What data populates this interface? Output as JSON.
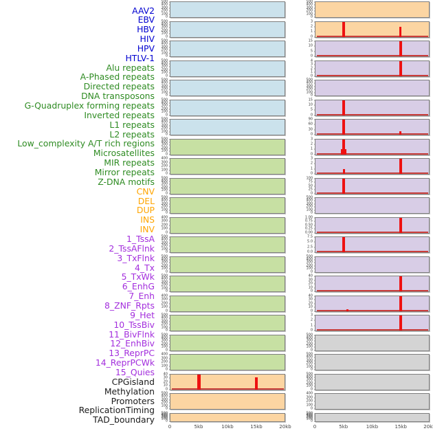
{
  "chart_data": {
    "type": "area",
    "title": "",
    "description": "Multi-panel genomic feature density tracks over a 20kb window; red spikes mark feature enrichment at ~5kb and ~15kb",
    "x_axis": {
      "ticks": [
        "0",
        "5kb",
        "10kb",
        "15kb",
        "20kb"
      ],
      "range_kb": [
        0,
        20
      ]
    },
    "label_colors": {
      "virus": "#0000D0",
      "repeat": "#2E8B22",
      "sv": "#FFA500",
      "chromatin": "#A32EDD",
      "other": "#1A1A1A"
    },
    "fill_colors": {
      "blue": "#CBE2EC",
      "green": "#C7E0A3",
      "orange": "#FCD5A2",
      "purple": "#D8CDE6",
      "gray": "#D4D4D4"
    },
    "spike_color": "#EE1111",
    "columns": [
      {
        "side": "left",
        "tracks": [
          {
            "label": "AAV2",
            "cat": "virus",
            "fill": "blue",
            "yticks": [
              "500",
              "400",
              "300",
              "200",
              "100",
              "0"
            ],
            "spikes": [],
            "baseline": false
          },
          {
            "label": "EBV",
            "cat": "virus",
            "fill": "blue",
            "yticks": [
              "500",
              "400",
              "300",
              "200",
              "100",
              "0"
            ],
            "spikes": [],
            "baseline": false
          },
          {
            "label": "HBV",
            "cat": "virus",
            "fill": "blue",
            "yticks": [
              "500",
              "400",
              "300",
              "200",
              "100",
              "0"
            ],
            "spikes": [],
            "baseline": false
          },
          {
            "label": "HIV",
            "cat": "virus",
            "fill": "blue",
            "yticks": [
              "500",
              "400",
              "300",
              "200",
              "100",
              "0"
            ],
            "spikes": [],
            "baseline": false
          },
          {
            "label": "HPV",
            "cat": "virus",
            "fill": "blue",
            "yticks": [
              "500",
              "400",
              "300",
              "200",
              "100",
              "0"
            ],
            "spikes": [],
            "baseline": false
          },
          {
            "label": "HTLV-1",
            "cat": "virus",
            "fill": "blue",
            "yticks": [
              "500",
              "400",
              "300",
              "200",
              "100",
              "0"
            ],
            "spikes": [],
            "baseline": false
          },
          {
            "label": "Alu repeats",
            "cat": "repeat",
            "fill": "blue",
            "yticks": [
              "500",
              "400",
              "300",
              "200",
              "100",
              "0"
            ],
            "spikes": [],
            "baseline": false
          },
          {
            "label": "A-Phased repeats",
            "cat": "repeat",
            "fill": "green",
            "yticks": [
              "500",
              "400",
              "300",
              "200",
              "100",
              "0"
            ],
            "spikes": [],
            "baseline": false
          },
          {
            "label": "Directed repeats",
            "cat": "repeat",
            "fill": "green",
            "yticks": [
              "400",
              "300",
              "200",
              "100",
              "0"
            ],
            "spikes": [],
            "baseline": false
          },
          {
            "label": "DNA transposons",
            "cat": "repeat",
            "fill": "green",
            "yticks": [
              "500",
              "400",
              "300",
              "200",
              "100",
              "0"
            ],
            "spikes": [],
            "baseline": false
          },
          {
            "label": "G-Quadruplex forming repeats",
            "cat": "repeat",
            "fill": "green",
            "yticks": [
              "500",
              "400",
              "300",
              "200",
              "100",
              "0"
            ],
            "spikes": [],
            "baseline": false
          },
          {
            "label": "Inverted repeats",
            "cat": "repeat",
            "fill": "green",
            "yticks": [
              "400",
              "300",
              "200",
              "100",
              "0"
            ],
            "spikes": [],
            "baseline": false
          },
          {
            "label": "L1 repeats",
            "cat": "repeat",
            "fill": "green",
            "yticks": [
              "500",
              "400",
              "300",
              "200",
              "100",
              "0"
            ],
            "spikes": [],
            "baseline": false
          },
          {
            "label": "L2 repeats",
            "cat": "repeat",
            "fill": "green",
            "yticks": [
              "500",
              "400",
              "300",
              "200",
              "100",
              "0"
            ],
            "spikes": [],
            "baseline": false
          },
          {
            "label": "Low_complexity A/T rich regions",
            "cat": "repeat",
            "fill": "green",
            "yticks": [
              "500",
              "400",
              "300",
              "200",
              "100",
              "0"
            ],
            "spikes": [],
            "baseline": false
          },
          {
            "label": "Microsatellites",
            "cat": "repeat",
            "fill": "green",
            "yticks": [
              "400",
              "300",
              "200",
              "100",
              "0"
            ],
            "spikes": [],
            "baseline": false
          },
          {
            "label": "MIR repeats",
            "cat": "repeat",
            "fill": "green",
            "yticks": [
              "500",
              "400",
              "300",
              "200",
              "100",
              "0"
            ],
            "spikes": [],
            "baseline": false
          },
          {
            "label": "Mirror repeats",
            "cat": "repeat",
            "fill": "green",
            "yticks": [
              "500",
              "400",
              "300",
              "200",
              "100",
              "0"
            ],
            "spikes": [],
            "baseline": false
          },
          {
            "label": "Z-DNA motifs",
            "cat": "repeat",
            "fill": "green",
            "yticks": [
              "400",
              "300",
              "200",
              "100",
              "0"
            ],
            "spikes": [],
            "baseline": false
          },
          {
            "label": "CNV",
            "cat": "sv",
            "fill": "orange",
            "yticks": [
              "40",
              "30",
              "20",
              "10",
              "0"
            ],
            "spikes": [
              {
                "x_kb": 5,
                "value": 45,
                "w": 5
              },
              {
                "x_kb": 15,
                "value": 32,
                "w": 4
              }
            ],
            "baseline": true
          },
          {
            "label": "DEL",
            "cat": "sv",
            "fill": "orange",
            "yticks": [
              "500",
              "400",
              "300",
              "200",
              "100",
              "0"
            ],
            "spikes": [],
            "baseline": false
          },
          {
            "label": "DUP",
            "cat": "sv",
            "fill": "orange",
            "yticks": [
              "500",
              "400",
              "300",
              "200",
              "100",
              "0"
            ],
            "spikes": [],
            "baseline": false,
            "short": true
          }
        ]
      },
      {
        "side": "right",
        "tracks": [
          {
            "label": "INS",
            "cat": "sv",
            "fill": "orange",
            "yticks": [
              "500",
              "400",
              "300",
              "200",
              "100",
              "0"
            ],
            "spikes": [],
            "baseline": false
          },
          {
            "label": "INV",
            "cat": "sv",
            "fill": "orange",
            "yticks": [
              "3",
              "2",
              "1",
              "0"
            ],
            "spikes": [
              {
                "x_kb": 5,
                "value": 3.2,
                "w": 4
              },
              {
                "x_kb": 15,
                "value": 2,
                "w": 3
              }
            ],
            "baseline": true
          },
          {
            "label": "1_TssA",
            "cat": "chromatin",
            "fill": "purple",
            "yticks": [
              "15",
              "10",
              "5",
              "0"
            ],
            "spikes": [
              {
                "x_kb": 15,
                "value": 16,
                "w": 4
              }
            ],
            "baseline": true
          },
          {
            "label": "2_TssAFlnk",
            "cat": "chromatin",
            "fill": "purple",
            "yticks": [
              "4",
              "3",
              "2",
              "1",
              "0"
            ],
            "spikes": [
              {
                "x_kb": 15,
                "value": 4.2,
                "w": 4
              }
            ],
            "baseline": true
          },
          {
            "label": "3_TxFlnk",
            "cat": "chromatin",
            "fill": "purple",
            "yticks": [
              "500",
              "400",
              "300",
              "200",
              "100",
              "0"
            ],
            "spikes": [],
            "baseline": false
          },
          {
            "label": "4_Tx",
            "cat": "chromatin",
            "fill": "purple",
            "yticks": [
              "15",
              "10",
              "5",
              "0"
            ],
            "spikes": [
              {
                "x_kb": 5,
                "value": 16,
                "w": 4
              }
            ],
            "baseline": true
          },
          {
            "label": "5_TxWk",
            "cat": "chromatin",
            "fill": "purple",
            "yticks": [
              "90",
              "60",
              "30",
              "0"
            ],
            "spikes": [
              {
                "x_kb": 5,
                "value": 95,
                "w": 4
              },
              {
                "x_kb": 15,
                "value": 20,
                "w": 3
              }
            ],
            "baseline": true
          },
          {
            "label": "6_EnhG",
            "cat": "chromatin",
            "fill": "purple",
            "yticks": [
              "3",
              "2",
              "1",
              "0"
            ],
            "spikes": [
              {
                "x_kb": 5,
                "value": 3.2,
                "w": 4
              },
              {
                "x_kb": 5,
                "value": 1,
                "w": 8
              }
            ],
            "baseline": true
          },
          {
            "label": "7_Enh",
            "cat": "chromatin",
            "fill": "purple",
            "yticks": [
              "3",
              "2",
              "1",
              "0"
            ],
            "spikes": [
              {
                "x_kb": 15,
                "value": 3.2,
                "w": 4
              },
              {
                "x_kb": 5,
                "value": 1,
                "w": 3
              }
            ],
            "baseline": true
          },
          {
            "label": "8_ZNF_Rpts",
            "cat": "chromatin",
            "fill": "purple",
            "yticks": [
              "100",
              "75",
              "50",
              "25",
              "0"
            ],
            "spikes": [
              {
                "x_kb": 5,
                "value": 105,
                "w": 4
              }
            ],
            "baseline": true
          },
          {
            "label": "9_Het",
            "cat": "chromatin",
            "fill": "purple",
            "yticks": [
              "500",
              "400",
              "300",
              "200",
              "100",
              "0"
            ],
            "spikes": [],
            "baseline": false
          },
          {
            "label": "10_TssBiv",
            "cat": "chromatin",
            "fill": "purple",
            "yticks": [
              "1.00",
              "0.75",
              "0.50",
              "0.25",
              "0.00"
            ],
            "spikes": [
              {
                "x_kb": 15,
                "value": 1.05,
                "w": 4
              }
            ],
            "baseline": true
          },
          {
            "label": "11_BivFlnk",
            "cat": "chromatin",
            "fill": "purple",
            "yticks": [
              "7.5",
              "5.0",
              "2.5",
              "0.0"
            ],
            "spikes": [
              {
                "x_kb": 5,
                "value": 8,
                "w": 4
              }
            ],
            "baseline": true
          },
          {
            "label": "12_EnhBiv",
            "cat": "chromatin",
            "fill": "purple",
            "yticks": [
              "500",
              "400",
              "300",
              "200",
              "100",
              "0"
            ],
            "spikes": [],
            "baseline": false
          },
          {
            "label": "13_ReprPC",
            "cat": "chromatin",
            "fill": "purple",
            "yticks": [
              "40",
              "30",
              "20",
              "10",
              "0"
            ],
            "spikes": [
              {
                "x_kb": 15,
                "value": 42,
                "w": 4
              }
            ],
            "baseline": true
          },
          {
            "label": "14_ReprPCWk",
            "cat": "chromatin",
            "fill": "purple",
            "yticks": [
              "40",
              "30",
              "20",
              "10",
              "0"
            ],
            "spikes": [
              {
                "x_kb": 15,
                "value": 42,
                "w": 4
              },
              {
                "x_kb": 5.6,
                "value": 4,
                "w": 3
              }
            ],
            "baseline": true
          },
          {
            "label": "15_Quies",
            "cat": "chromatin",
            "fill": "purple",
            "yticks": [
              "3",
              "2",
              "1",
              "0"
            ],
            "spikes": [
              {
                "x_kb": 15,
                "value": 3.2,
                "w": 4
              }
            ],
            "baseline": true
          },
          {
            "label": "CPGisland",
            "cat": "other",
            "fill": "gray",
            "yticks": [
              "500",
              "400",
              "300",
              "200",
              "100",
              "0"
            ],
            "spikes": [],
            "baseline": false
          },
          {
            "label": "Methylation",
            "cat": "other",
            "fill": "gray",
            "yticks": [
              "500",
              "400",
              "300",
              "200",
              "100",
              "0"
            ],
            "spikes": [],
            "baseline": false
          },
          {
            "label": "Promoters",
            "cat": "other",
            "fill": "gray",
            "yticks": [
              "500",
              "400",
              "300",
              "200",
              "100",
              "0"
            ],
            "spikes": [],
            "baseline": false
          },
          {
            "label": "ReplicationTiming",
            "cat": "other",
            "fill": "gray",
            "yticks": [
              "400",
              "300",
              "200",
              "100",
              "0"
            ],
            "spikes": [],
            "baseline": false
          },
          {
            "label": "TAD_boundary",
            "cat": "other",
            "fill": "gray",
            "yticks": [
              "500",
              "400",
              "300",
              "200",
              "100",
              "0"
            ],
            "spikes": [],
            "baseline": false,
            "short": true
          }
        ]
      }
    ]
  }
}
